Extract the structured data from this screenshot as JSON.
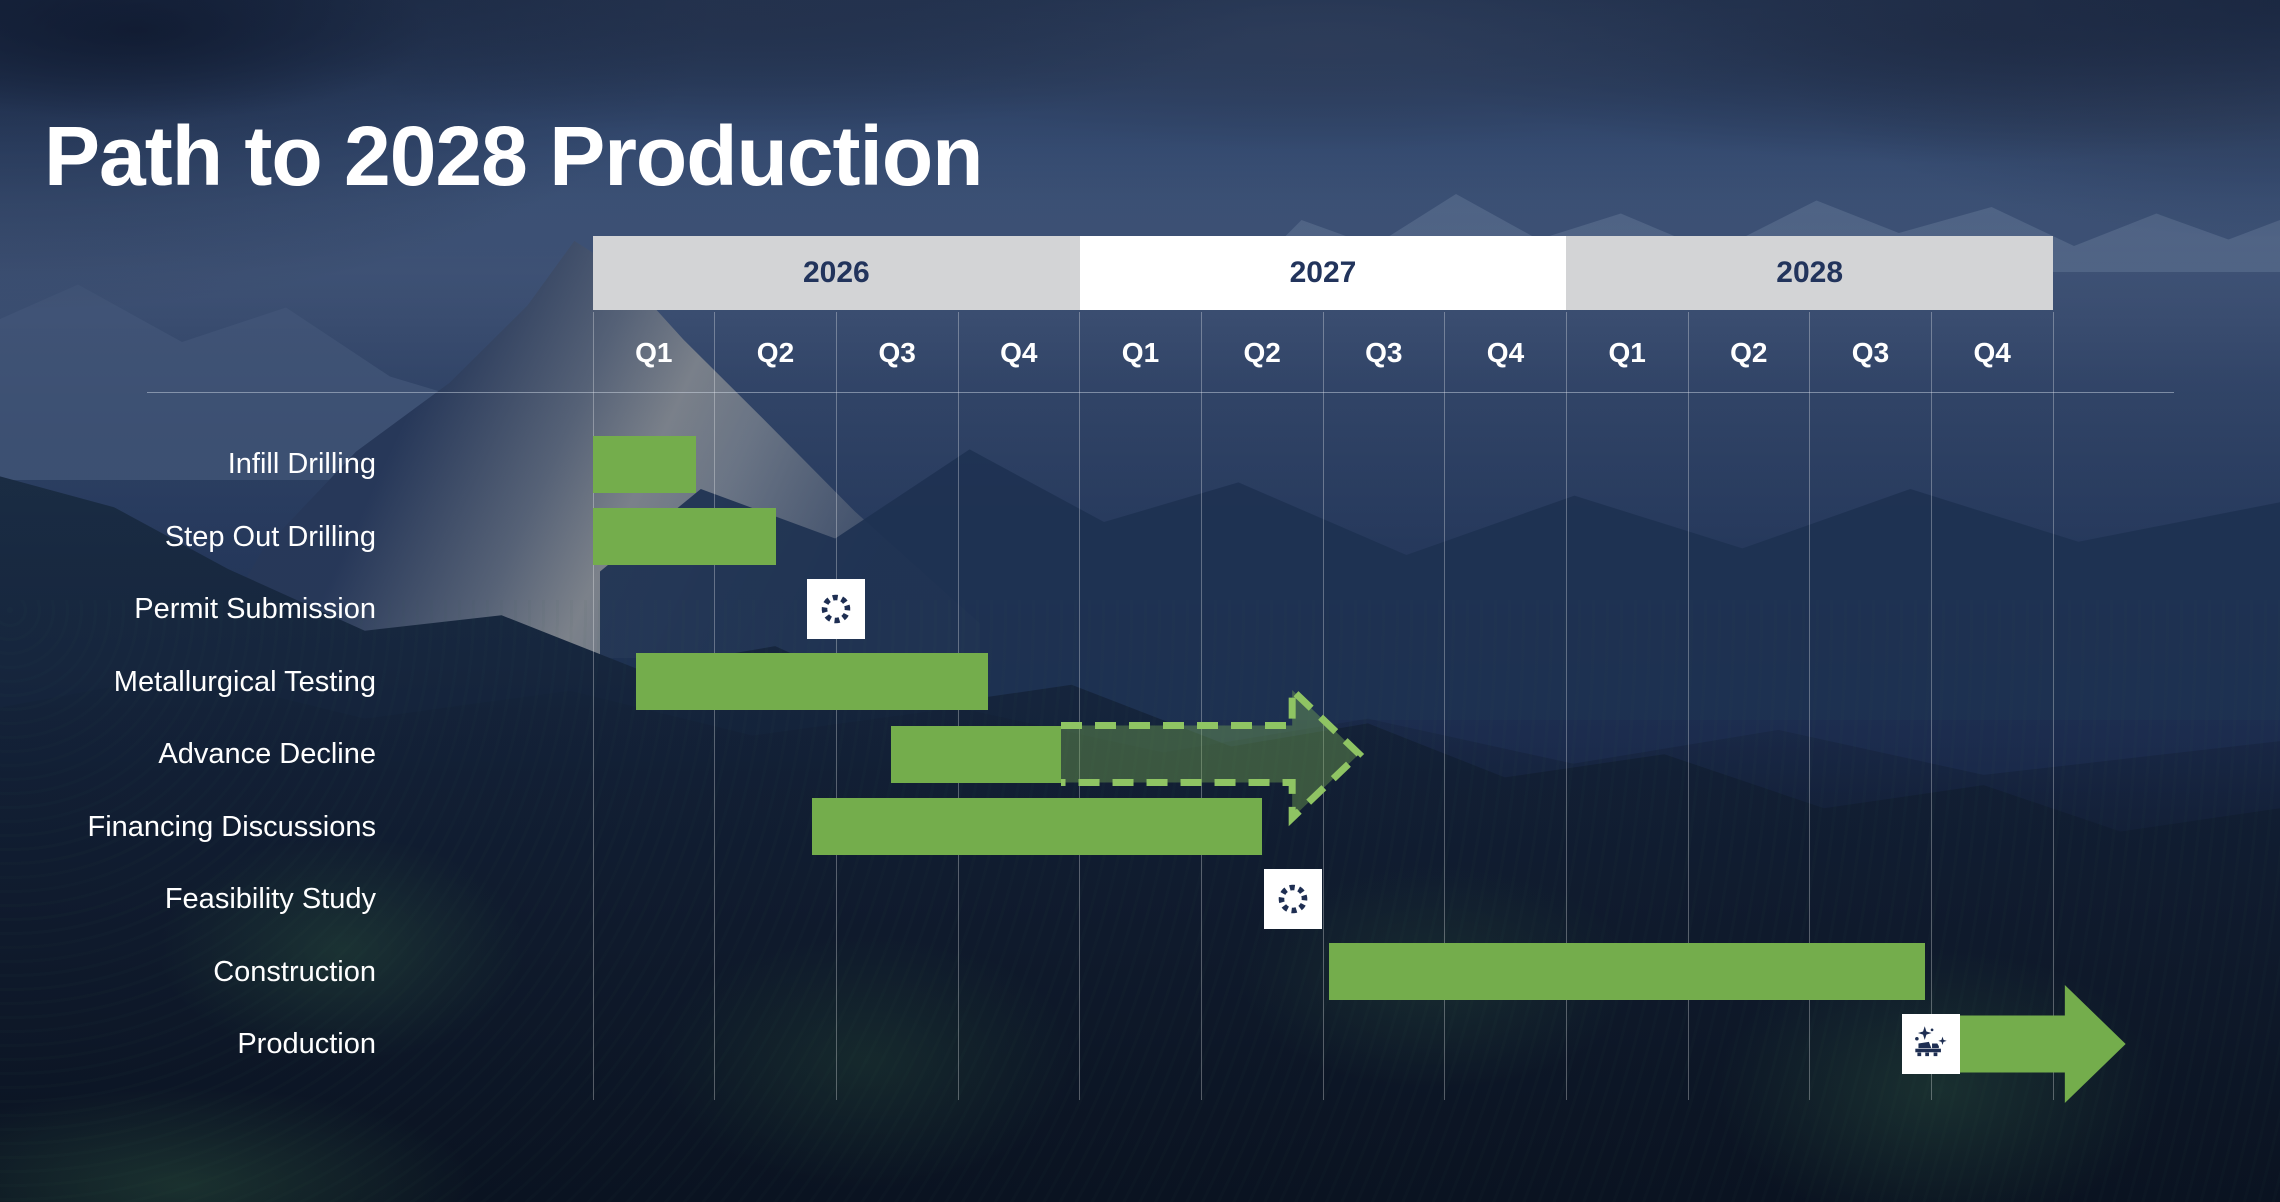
{
  "chart_data": {
    "type": "gantt",
    "title": "Path to 2028 Production",
    "quarter_unit": "quarters elapsed since start of 2026",
    "years": [
      {
        "label": "2026",
        "bg": "#D3D4D6"
      },
      {
        "label": "2027",
        "bg": "#FFFFFF"
      },
      {
        "label": "2028",
        "bg": "#D3D4D6"
      }
    ],
    "quarters": [
      "Q1",
      "Q2",
      "Q3",
      "Q4",
      "Q1",
      "Q2",
      "Q3",
      "Q4",
      "Q1",
      "Q2",
      "Q3",
      "Q4"
    ],
    "tasks": [
      {
        "label": "Infill Drilling",
        "type": "bar",
        "start": 0,
        "end": 0.85
      },
      {
        "label": "Step Out Drilling",
        "type": "bar",
        "start": 0,
        "end": 1.5
      },
      {
        "label": "Permit Submission",
        "type": "milestone",
        "icon": "spinner",
        "at": 2.0
      },
      {
        "label": "Metallurgical Testing",
        "type": "bar",
        "start": 0.35,
        "end": 3.25
      },
      {
        "label": "Advance Decline",
        "type": "bar-dashed-arrow",
        "start": 2.45,
        "end": 3.85,
        "dash_end": 5.75,
        "tip": 6.3
      },
      {
        "label": "Financing Discussions",
        "type": "bar",
        "start": 1.8,
        "end": 5.5
      },
      {
        "label": "Feasibility Study",
        "type": "milestone",
        "icon": "spinner",
        "at": 5.75
      },
      {
        "label": "Construction",
        "type": "bar",
        "start": 6.05,
        "end": 10.95
      },
      {
        "label": "Production",
        "type": "milestone-arrow",
        "icon": "truck",
        "at": 11.0,
        "arrow_back": 12.1,
        "tip": 12.6
      }
    ],
    "colors": {
      "bar": "#74AD4C",
      "dash_stroke": "#8FC463",
      "dash_fill": "rgba(125,180,85,0.38)",
      "milestone_bg": "#FFFFFF",
      "icon": "#1E2E52",
      "year_text": "#22345C",
      "quarter_text": "#FFFFFF",
      "grid": "rgba(255,255,255,0.30)",
      "baseline": "rgba(220,228,240,0.45)"
    }
  }
}
